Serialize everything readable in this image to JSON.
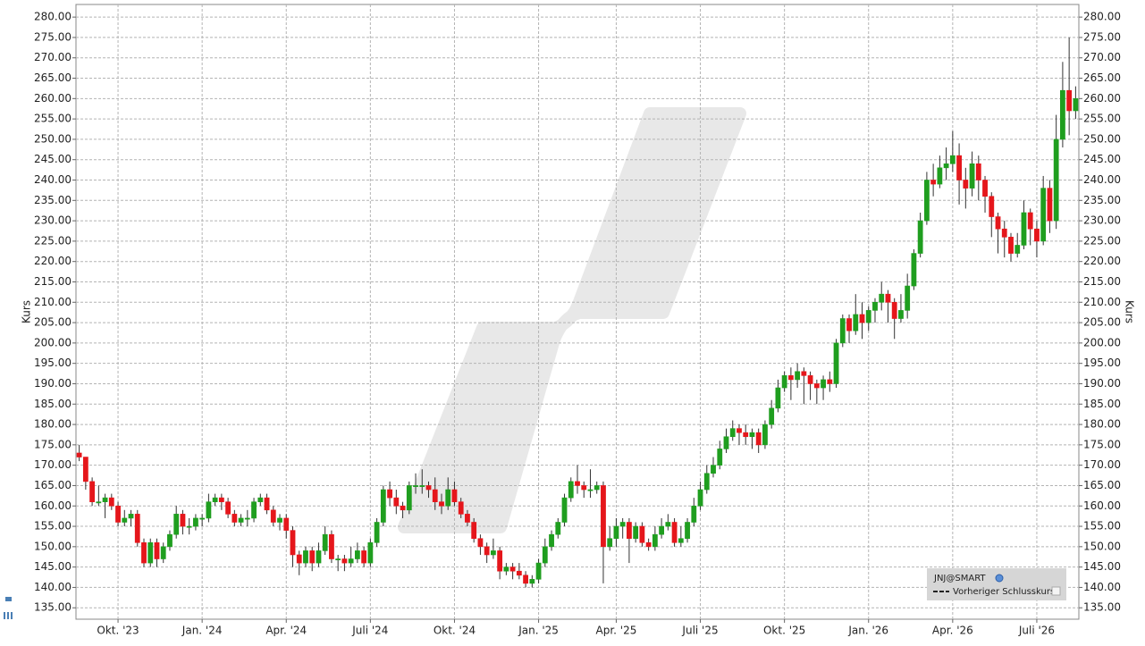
{
  "chart_data": {
    "type": "candlestick",
    "y_label": "Kurs",
    "legend_extra": "Vorheriger Schlusskurs",
    "ylim": [
      132.2,
      283.1
    ],
    "yticks": [
      {
        "value": 135,
        "label": "135.00"
      },
      {
        "value": 140,
        "label": "140.00"
      },
      {
        "value": 145,
        "label": "145.00"
      },
      {
        "value": 150,
        "label": "150.00"
      },
      {
        "value": 155,
        "label": "155.00"
      },
      {
        "value": 160,
        "label": "160.00"
      },
      {
        "value": 165,
        "label": "165.00"
      },
      {
        "value": 170,
        "label": "170.00"
      },
      {
        "value": 175,
        "label": "175.00"
      },
      {
        "value": 180,
        "label": "180.00"
      },
      {
        "value": 185,
        "label": "185.00"
      },
      {
        "value": 190,
        "label": "190.00"
      },
      {
        "value": 195,
        "label": "195.00"
      },
      {
        "value": 200,
        "label": "200.00"
      },
      {
        "value": 205,
        "label": "205.00"
      },
      {
        "value": 210,
        "label": "210.00"
      },
      {
        "value": 215,
        "label": "215.00"
      },
      {
        "value": 220,
        "label": "220.00"
      },
      {
        "value": 225,
        "label": "225.00"
      },
      {
        "value": 230,
        "label": "230.00"
      },
      {
        "value": 235,
        "label": "235.00"
      },
      {
        "value": 240,
        "label": "240.00"
      },
      {
        "value": 245,
        "label": "245.00"
      },
      {
        "value": 250,
        "label": "250.00"
      },
      {
        "value": 255,
        "label": "255.00"
      },
      {
        "value": 260,
        "label": "260.00"
      },
      {
        "value": 265,
        "label": "265.00"
      },
      {
        "value": 270,
        "label": "270.00"
      },
      {
        "value": 275,
        "label": "275.00"
      },
      {
        "value": 280,
        "label": "280.00"
      }
    ],
    "grid": true,
    "categories": [
      null,
      null,
      null,
      null,
      null,
      null,
      "Okt. '23",
      null,
      null,
      null,
      null,
      null,
      null,
      null,
      null,
      null,
      null,
      null,
      null,
      "Jan. '24",
      null,
      null,
      null,
      null,
      null,
      null,
      null,
      null,
      null,
      null,
      null,
      null,
      "Apr. '24",
      null,
      null,
      null,
      null,
      null,
      null,
      null,
      null,
      null,
      null,
      null,
      null,
      "Juli '24",
      null,
      null,
      null,
      null,
      null,
      null,
      null,
      null,
      null,
      null,
      null,
      null,
      "Okt. '24",
      null,
      null,
      null,
      null,
      null,
      null,
      null,
      null,
      null,
      null,
      null,
      null,
      "Jan. '25",
      null,
      null,
      null,
      null,
      null,
      null,
      null,
      null,
      null,
      null,
      null,
      "Apr. '25",
      null,
      null,
      null,
      null,
      null,
      null,
      null,
      null,
      null,
      null,
      null,
      null,
      "Juli '25",
      null,
      null,
      null,
      null,
      null,
      null,
      null,
      null,
      null,
      null,
      null,
      null,
      "Okt. '25",
      null,
      null,
      null,
      null,
      null,
      null,
      null,
      null,
      null,
      null,
      null,
      null,
      "Jan. '26",
      null,
      null,
      null,
      null,
      null,
      null,
      null,
      null,
      null,
      null,
      null,
      null,
      "Apr. '26",
      null,
      null,
      null,
      null,
      null,
      null,
      null,
      null,
      null,
      null,
      null,
      null,
      "Juli '26",
      null,
      null,
      null,
      null,
      null,
      null
    ],
    "series": [
      {
        "name": "JNJ@SMART",
        "up_color": "#1f9e1f",
        "down_color": "#e5161b",
        "open": [
          173,
          172,
          166,
          161,
          161,
          162,
          160,
          156,
          157,
          158,
          151,
          146,
          151,
          147,
          150,
          153,
          158,
          155,
          155,
          157,
          157,
          161,
          162,
          161,
          158,
          156,
          157,
          157,
          161,
          162,
          159,
          156,
          157,
          154,
          148,
          146,
          149,
          146,
          149,
          153,
          147,
          147,
          146,
          147,
          149,
          146,
          151,
          156,
          164,
          162,
          160,
          159,
          165,
          165,
          165,
          164,
          161,
          160,
          164,
          161,
          158,
          156,
          152,
          150,
          148,
          149,
          144,
          145,
          144,
          143,
          141,
          142,
          146,
          150,
          153,
          156,
          162,
          166,
          165,
          164,
          164,
          165,
          150,
          152,
          155,
          156,
          152,
          155,
          151,
          150,
          153,
          155,
          156,
          151,
          152,
          156,
          160,
          164,
          168,
          170,
          174,
          177,
          179,
          178,
          177,
          178,
          175,
          180,
          184,
          189,
          192,
          191,
          193,
          192,
          190,
          189,
          191,
          190,
          200,
          206,
          203,
          207,
          205,
          208,
          210,
          212,
          210,
          206,
          208,
          214,
          222,
          230,
          240,
          239,
          243,
          244,
          246,
          240,
          238,
          244,
          240,
          236,
          231,
          228,
          226,
          222,
          224,
          232,
          228,
          225,
          238,
          230,
          250,
          262,
          257
        ],
        "high": [
          175,
          172,
          167,
          165,
          163,
          163,
          161,
          159,
          159,
          159,
          152,
          152,
          152,
          151,
          154,
          160,
          159,
          157,
          158,
          158,
          163,
          163,
          163,
          162,
          159,
          158,
          159,
          162,
          163,
          163,
          160,
          158,
          158,
          155,
          149,
          150,
          150,
          151,
          155,
          154,
          148,
          148,
          150,
          151,
          150,
          152,
          157,
          165,
          166,
          164,
          161,
          166,
          168,
          169,
          166,
          167,
          163,
          167,
          166,
          162,
          159,
          157,
          153,
          151,
          152,
          150,
          146,
          146,
          146,
          144,
          143,
          147,
          152,
          154,
          157,
          163,
          167,
          170,
          166,
          169,
          166,
          166,
          155,
          157,
          157,
          157,
          156,
          156,
          152,
          155,
          157,
          158,
          157,
          155,
          157,
          162,
          166,
          170,
          172,
          176,
          179,
          181,
          180,
          180,
          179,
          179,
          181,
          186,
          191,
          193,
          194,
          195,
          194,
          193,
          191,
          192,
          193,
          201,
          207,
          207,
          212,
          210,
          209,
          211,
          215,
          213,
          211,
          212,
          217,
          223,
          232,
          242,
          244,
          246,
          248,
          252,
          249,
          243,
          247,
          246,
          241,
          237,
          232,
          230,
          227,
          227,
          235,
          233,
          230,
          241,
          240,
          256,
          269,
          275,
          263
        ],
        "low": [
          171,
          164,
          160,
          160,
          157,
          159,
          155,
          155,
          155,
          150,
          145,
          145,
          145,
          146,
          149,
          152,
          153,
          153,
          154,
          155,
          156,
          160,
          159,
          157,
          155,
          155,
          155,
          156,
          160,
          158,
          155,
          154,
          152,
          145,
          143,
          145,
          144,
          145,
          148,
          146,
          144,
          144,
          145,
          146,
          145,
          145,
          150,
          155,
          160,
          158,
          157,
          158,
          163,
          163,
          162,
          159,
          158,
          159,
          160,
          157,
          155,
          151,
          148,
          146,
          147,
          142,
          143,
          142,
          142,
          140,
          140,
          141,
          145,
          149,
          152,
          155,
          161,
          163,
          162,
          162,
          163,
          141,
          149,
          150,
          152,
          146,
          151,
          150,
          149,
          149,
          152,
          154,
          150,
          150,
          151,
          155,
          159,
          163,
          167,
          169,
          173,
          176,
          175,
          175,
          174,
          173,
          174,
          179,
          183,
          188,
          186,
          189,
          185,
          186,
          185,
          186,
          188,
          189,
          199,
          200,
          202,
          201,
          203,
          205,
          208,
          205,
          201,
          205,
          206,
          213,
          221,
          229,
          236,
          238,
          240,
          242,
          234,
          233,
          236,
          235,
          232,
          226,
          222,
          221,
          220,
          221,
          223,
          224,
          221,
          224,
          227,
          228,
          248,
          251,
          255
        ],
        "close": [
          172,
          166,
          161,
          161,
          162,
          160,
          156,
          157,
          158,
          151,
          146,
          151,
          147,
          150,
          153,
          158,
          155,
          155,
          157,
          157,
          161,
          162,
          161,
          158,
          156,
          157,
          157,
          161,
          162,
          159,
          156,
          157,
          154,
          148,
          146,
          149,
          146,
          149,
          153,
          147,
          147,
          146,
          147,
          149,
          146,
          151,
          156,
          164,
          162,
          160,
          159,
          165,
          165,
          165,
          164,
          161,
          160,
          164,
          161,
          158,
          156,
          152,
          150,
          148,
          149,
          144,
          145,
          144,
          143,
          141,
          142,
          146,
          150,
          153,
          156,
          162,
          166,
          165,
          164,
          164,
          165,
          150,
          152,
          155,
          156,
          152,
          155,
          151,
          150,
          153,
          155,
          156,
          151,
          152,
          156,
          160,
          164,
          168,
          170,
          174,
          177,
          179,
          178,
          177,
          178,
          175,
          180,
          184,
          189,
          192,
          191,
          193,
          192,
          190,
          189,
          191,
          190,
          200,
          206,
          203,
          207,
          205,
          208,
          210,
          212,
          210,
          206,
          208,
          214,
          222,
          230,
          240,
          239,
          243,
          244,
          246,
          240,
          238,
          244,
          240,
          236,
          231,
          228,
          226,
          222,
          224,
          232,
          228,
          225,
          238,
          230,
          250,
          262,
          257,
          260
        ]
      }
    ]
  }
}
